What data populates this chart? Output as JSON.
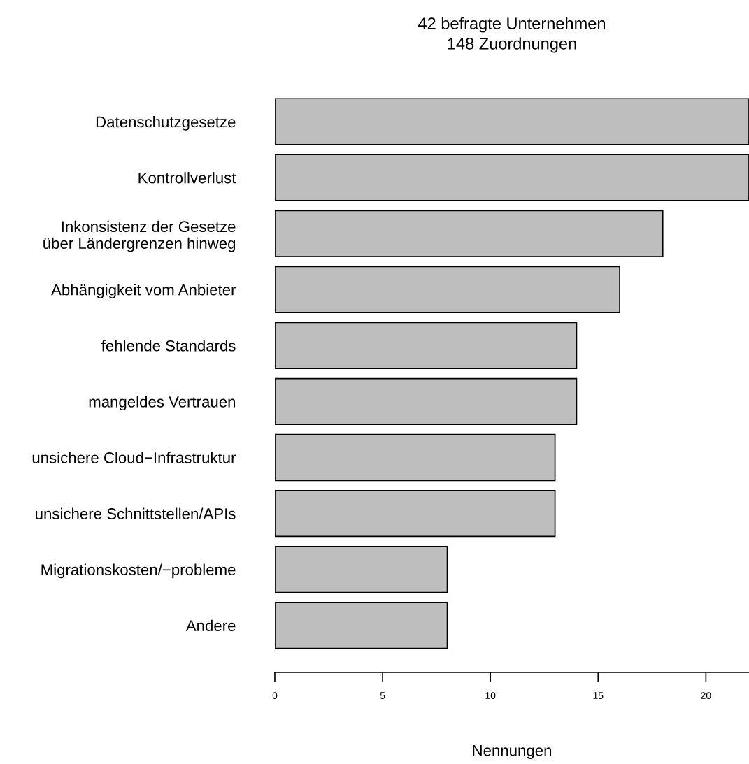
{
  "chart_data": {
    "type": "bar",
    "orientation": "horizontal",
    "title": "42 befragte Unternehmen\n148 Zuordnungen",
    "xlabel": "Nennungen",
    "categories": [
      "Datenschutzgesetze",
      "Kontrollverlust",
      "Inkonsistenz der Gesetze\nüber Ländergrenzen hinweg",
      "Abhängigkeit vom Anbieter",
      "fehlende Standards",
      "mangeldes Vertrauen",
      "unsichere Cloud−Infrastruktur",
      "unsichere Schnittstellen/APIs",
      "Migrationskosten/−probleme",
      "Andere"
    ],
    "values": [
      22,
      22,
      18,
      16,
      14,
      14,
      13,
      13,
      8,
      8
    ],
    "color": "#bebebe",
    "xlim": [
      0,
      22
    ],
    "xticks": [
      0,
      5,
      10,
      15,
      20
    ],
    "grid": false,
    "legend": false
  }
}
